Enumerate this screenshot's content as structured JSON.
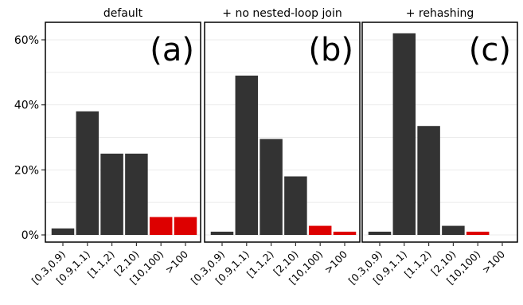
{
  "chart_data": {
    "type": "bar",
    "categories": [
      "[0.3,0.9)",
      "[0.9,1.1)",
      "[1.1,2)",
      "[2,10)",
      "[10,100)",
      ">100"
    ],
    "y_ticks": [
      "0%",
      "20%",
      "40%",
      "60%"
    ],
    "y_tick_values": [
      0,
      20,
      40,
      60
    ],
    "ylim": [
      0,
      66
    ],
    "grid": true,
    "colors": {
      "normal": "#333333",
      "highlight": "#dd0000",
      "grid": "#ebebeb",
      "border": "#000000"
    },
    "highlight_categories": [
      "[10,100)",
      ">100"
    ],
    "panels": [
      {
        "title": "default",
        "label": "(a)",
        "values": [
          2,
          38,
          25,
          25,
          5.5,
          5.5
        ]
      },
      {
        "title": "+ no nested-loop join",
        "label": "(b)",
        "values": [
          1,
          49,
          29.5,
          18,
          2.8,
          1
        ]
      },
      {
        "title": "+ rehashing",
        "label": "(c)",
        "values": [
          1,
          62,
          33.5,
          2.8,
          1,
          0
        ]
      }
    ]
  }
}
